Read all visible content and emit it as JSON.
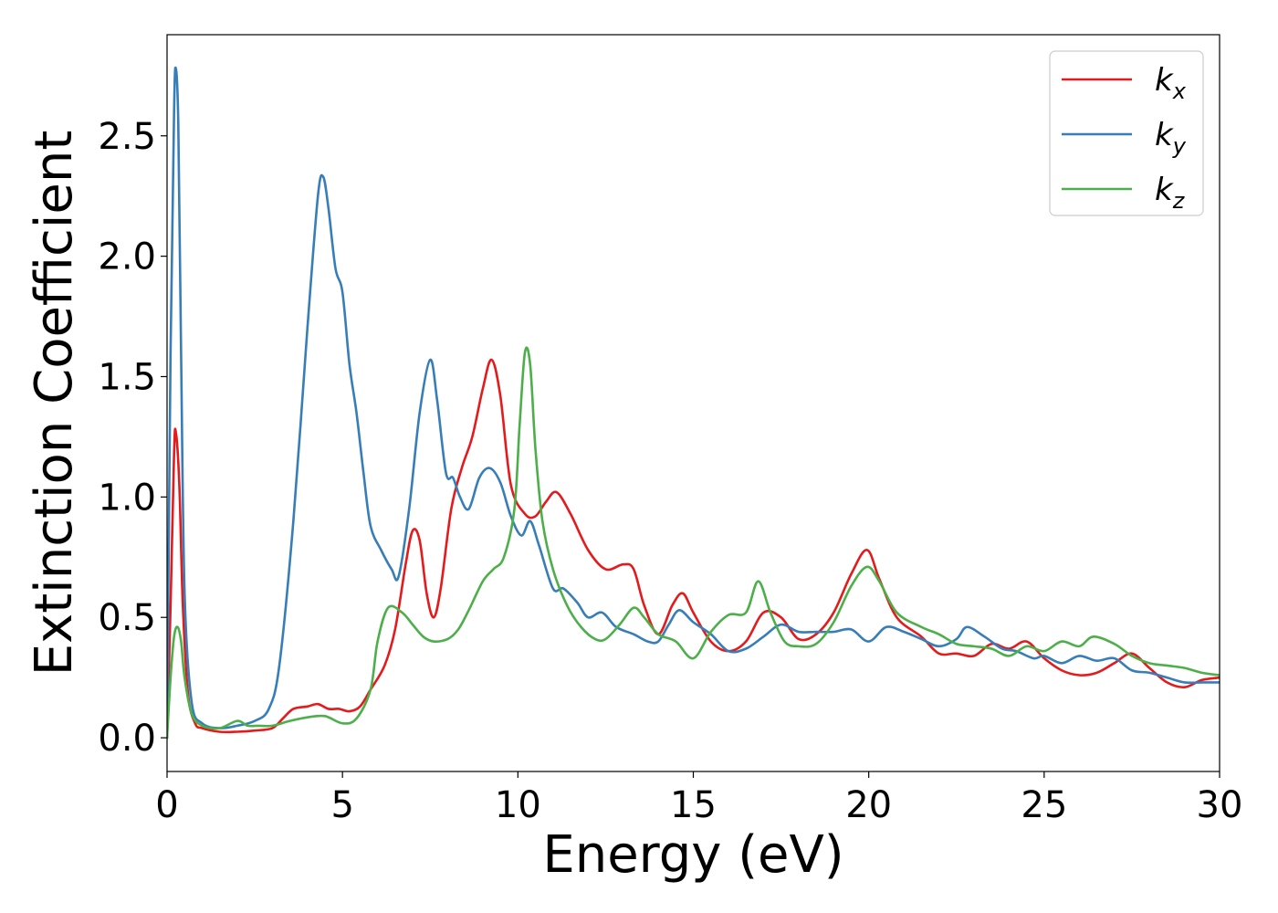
{
  "chart_data": {
    "type": "line",
    "xlabel": "Energy (eV)",
    "ylabel": "Extinction Coefficient",
    "xlim": [
      0,
      30
    ],
    "ylim": [
      -0.14,
      2.92
    ],
    "xticks": [
      0,
      5,
      10,
      15,
      20,
      25,
      30
    ],
    "yticks": [
      0.0,
      0.5,
      1.0,
      1.5,
      2.0,
      2.5
    ],
    "xtick_labels": [
      "0",
      "5",
      "10",
      "15",
      "20",
      "25",
      "30"
    ],
    "ytick_labels": [
      "0.0",
      "0.5",
      "1.0",
      "1.5",
      "2.0",
      "2.5"
    ],
    "grid": false,
    "legend_position": "top-right",
    "series": [
      {
        "name": "k_x",
        "label_base": "k",
        "label_sub": "x",
        "color": "#e41a1c",
        "points": [
          [
            0,
            0.0
          ],
          [
            0.1,
            0.55
          ],
          [
            0.2,
            1.18
          ],
          [
            0.25,
            1.27
          ],
          [
            0.35,
            1.05
          ],
          [
            0.45,
            0.55
          ],
          [
            0.6,
            0.18
          ],
          [
            0.8,
            0.06
          ],
          [
            1.0,
            0.04
          ],
          [
            1.5,
            0.025
          ],
          [
            2.0,
            0.025
          ],
          [
            2.5,
            0.03
          ],
          [
            3.0,
            0.04
          ],
          [
            3.3,
            0.08
          ],
          [
            3.6,
            0.12
          ],
          [
            4.0,
            0.13
          ],
          [
            4.3,
            0.14
          ],
          [
            4.6,
            0.12
          ],
          [
            4.9,
            0.12
          ],
          [
            5.2,
            0.11
          ],
          [
            5.5,
            0.13
          ],
          [
            5.8,
            0.2
          ],
          [
            6.2,
            0.3
          ],
          [
            6.5,
            0.45
          ],
          [
            6.8,
            0.72
          ],
          [
            7.0,
            0.86
          ],
          [
            7.2,
            0.82
          ],
          [
            7.4,
            0.6
          ],
          [
            7.6,
            0.5
          ],
          [
            7.8,
            0.62
          ],
          [
            8.1,
            0.95
          ],
          [
            8.4,
            1.12
          ],
          [
            8.7,
            1.25
          ],
          [
            9.0,
            1.45
          ],
          [
            9.25,
            1.57
          ],
          [
            9.5,
            1.42
          ],
          [
            9.8,
            1.05
          ],
          [
            10.2,
            0.93
          ],
          [
            10.5,
            0.92
          ],
          [
            10.8,
            0.98
          ],
          [
            11.1,
            1.02
          ],
          [
            11.5,
            0.93
          ],
          [
            12.0,
            0.78
          ],
          [
            12.5,
            0.7
          ],
          [
            13.0,
            0.72
          ],
          [
            13.3,
            0.7
          ],
          [
            13.6,
            0.55
          ],
          [
            14.0,
            0.43
          ],
          [
            14.4,
            0.55
          ],
          [
            14.7,
            0.6
          ],
          [
            15.0,
            0.52
          ],
          [
            15.5,
            0.4
          ],
          [
            16.0,
            0.36
          ],
          [
            16.5,
            0.4
          ],
          [
            17.0,
            0.52
          ],
          [
            17.5,
            0.5
          ],
          [
            18.0,
            0.41
          ],
          [
            18.5,
            0.43
          ],
          [
            19.0,
            0.52
          ],
          [
            19.5,
            0.68
          ],
          [
            19.95,
            0.78
          ],
          [
            20.3,
            0.66
          ],
          [
            20.8,
            0.5
          ],
          [
            21.5,
            0.42
          ],
          [
            22.0,
            0.35
          ],
          [
            22.5,
            0.35
          ],
          [
            23.0,
            0.34
          ],
          [
            23.5,
            0.39
          ],
          [
            24.0,
            0.37
          ],
          [
            24.5,
            0.4
          ],
          [
            25.0,
            0.33
          ],
          [
            25.5,
            0.28
          ],
          [
            26.0,
            0.26
          ],
          [
            26.5,
            0.27
          ],
          [
            27.0,
            0.31
          ],
          [
            27.5,
            0.35
          ],
          [
            28.0,
            0.29
          ],
          [
            28.5,
            0.23
          ],
          [
            29.0,
            0.21
          ],
          [
            29.5,
            0.24
          ],
          [
            30.0,
            0.25
          ]
        ]
      },
      {
        "name": "k_y",
        "label_base": "k",
        "label_sub": "y",
        "color": "#377eb8",
        "points": [
          [
            0,
            0.0
          ],
          [
            0.1,
            1.6
          ],
          [
            0.2,
            2.6
          ],
          [
            0.25,
            2.78
          ],
          [
            0.32,
            2.55
          ],
          [
            0.4,
            1.6
          ],
          [
            0.5,
            0.6
          ],
          [
            0.7,
            0.15
          ],
          [
            1.0,
            0.06
          ],
          [
            1.5,
            0.04
          ],
          [
            2.0,
            0.05
          ],
          [
            2.5,
            0.07
          ],
          [
            2.9,
            0.12
          ],
          [
            3.2,
            0.3
          ],
          [
            3.6,
            0.9
          ],
          [
            4.0,
            1.7
          ],
          [
            4.3,
            2.25
          ],
          [
            4.45,
            2.33
          ],
          [
            4.6,
            2.2
          ],
          [
            4.8,
            1.95
          ],
          [
            5.0,
            1.85
          ],
          [
            5.2,
            1.55
          ],
          [
            5.4,
            1.35
          ],
          [
            5.6,
            1.1
          ],
          [
            5.8,
            0.88
          ],
          [
            6.1,
            0.78
          ],
          [
            6.4,
            0.7
          ],
          [
            6.6,
            0.67
          ],
          [
            6.9,
            0.95
          ],
          [
            7.2,
            1.35
          ],
          [
            7.5,
            1.57
          ],
          [
            7.7,
            1.4
          ],
          [
            7.95,
            1.1
          ],
          [
            8.15,
            1.08
          ],
          [
            8.35,
            1.0
          ],
          [
            8.6,
            0.95
          ],
          [
            8.9,
            1.08
          ],
          [
            9.2,
            1.12
          ],
          [
            9.5,
            1.06
          ],
          [
            9.8,
            0.92
          ],
          [
            10.1,
            0.84
          ],
          [
            10.35,
            0.9
          ],
          [
            10.6,
            0.8
          ],
          [
            11.0,
            0.62
          ],
          [
            11.3,
            0.62
          ],
          [
            11.7,
            0.56
          ],
          [
            12.0,
            0.5
          ],
          [
            12.4,
            0.52
          ],
          [
            12.8,
            0.46
          ],
          [
            13.3,
            0.43
          ],
          [
            13.7,
            0.4
          ],
          [
            14.0,
            0.4
          ],
          [
            14.3,
            0.47
          ],
          [
            14.6,
            0.53
          ],
          [
            15.0,
            0.48
          ],
          [
            15.5,
            0.43
          ],
          [
            16.0,
            0.36
          ],
          [
            16.5,
            0.37
          ],
          [
            17.0,
            0.42
          ],
          [
            17.5,
            0.47
          ],
          [
            18.0,
            0.44
          ],
          [
            18.5,
            0.44
          ],
          [
            19.0,
            0.44
          ],
          [
            19.5,
            0.45
          ],
          [
            20.0,
            0.4
          ],
          [
            20.5,
            0.46
          ],
          [
            21.0,
            0.44
          ],
          [
            21.5,
            0.41
          ],
          [
            22.0,
            0.38
          ],
          [
            22.5,
            0.41
          ],
          [
            22.8,
            0.46
          ],
          [
            23.3,
            0.42
          ],
          [
            23.8,
            0.37
          ],
          [
            24.2,
            0.36
          ],
          [
            24.7,
            0.33
          ],
          [
            25.0,
            0.34
          ],
          [
            25.5,
            0.31
          ],
          [
            26.0,
            0.34
          ],
          [
            26.5,
            0.32
          ],
          [
            27.0,
            0.33
          ],
          [
            27.5,
            0.28
          ],
          [
            28.0,
            0.27
          ],
          [
            28.5,
            0.25
          ],
          [
            29.0,
            0.23
          ],
          [
            29.5,
            0.23
          ],
          [
            30.0,
            0.23
          ]
        ]
      },
      {
        "name": "k_z",
        "label_base": "k",
        "label_sub": "z",
        "color": "#4daf4a",
        "points": [
          [
            0,
            0.0
          ],
          [
            0.1,
            0.25
          ],
          [
            0.2,
            0.42
          ],
          [
            0.3,
            0.46
          ],
          [
            0.4,
            0.4
          ],
          [
            0.5,
            0.25
          ],
          [
            0.7,
            0.1
          ],
          [
            1.0,
            0.05
          ],
          [
            1.5,
            0.04
          ],
          [
            2.0,
            0.07
          ],
          [
            2.3,
            0.05
          ],
          [
            2.6,
            0.05
          ],
          [
            3.0,
            0.05
          ],
          [
            3.5,
            0.07
          ],
          [
            4.0,
            0.085
          ],
          [
            4.5,
            0.09
          ],
          [
            5.0,
            0.06
          ],
          [
            5.4,
            0.08
          ],
          [
            5.8,
            0.2
          ],
          [
            6.0,
            0.4
          ],
          [
            6.3,
            0.54
          ],
          [
            6.7,
            0.52
          ],
          [
            7.0,
            0.47
          ],
          [
            7.3,
            0.42
          ],
          [
            7.6,
            0.4
          ],
          [
            8.0,
            0.41
          ],
          [
            8.3,
            0.45
          ],
          [
            8.6,
            0.53
          ],
          [
            9.0,
            0.65
          ],
          [
            9.3,
            0.7
          ],
          [
            9.6,
            0.75
          ],
          [
            9.9,
            0.95
          ],
          [
            10.05,
            1.3
          ],
          [
            10.2,
            1.6
          ],
          [
            10.35,
            1.55
          ],
          [
            10.5,
            1.2
          ],
          [
            10.7,
            0.9
          ],
          [
            11.0,
            0.7
          ],
          [
            11.4,
            0.55
          ],
          [
            11.8,
            0.46
          ],
          [
            12.2,
            0.41
          ],
          [
            12.5,
            0.41
          ],
          [
            12.9,
            0.47
          ],
          [
            13.3,
            0.54
          ],
          [
            13.6,
            0.5
          ],
          [
            14.0,
            0.43
          ],
          [
            14.5,
            0.4
          ],
          [
            15.0,
            0.33
          ],
          [
            15.5,
            0.44
          ],
          [
            16.0,
            0.51
          ],
          [
            16.5,
            0.52
          ],
          [
            16.85,
            0.65
          ],
          [
            17.2,
            0.52
          ],
          [
            17.6,
            0.4
          ],
          [
            18.0,
            0.38
          ],
          [
            18.5,
            0.39
          ],
          [
            19.0,
            0.48
          ],
          [
            19.5,
            0.63
          ],
          [
            19.95,
            0.71
          ],
          [
            20.3,
            0.65
          ],
          [
            20.8,
            0.52
          ],
          [
            21.5,
            0.46
          ],
          [
            22.0,
            0.43
          ],
          [
            22.5,
            0.39
          ],
          [
            23.0,
            0.38
          ],
          [
            23.5,
            0.37
          ],
          [
            24.0,
            0.34
          ],
          [
            24.5,
            0.38
          ],
          [
            25.0,
            0.36
          ],
          [
            25.5,
            0.4
          ],
          [
            26.0,
            0.38
          ],
          [
            26.4,
            0.42
          ],
          [
            27.0,
            0.39
          ],
          [
            27.5,
            0.34
          ],
          [
            28.0,
            0.31
          ],
          [
            28.5,
            0.3
          ],
          [
            29.0,
            0.29
          ],
          [
            29.5,
            0.27
          ],
          [
            30.0,
            0.26
          ]
        ]
      }
    ]
  }
}
